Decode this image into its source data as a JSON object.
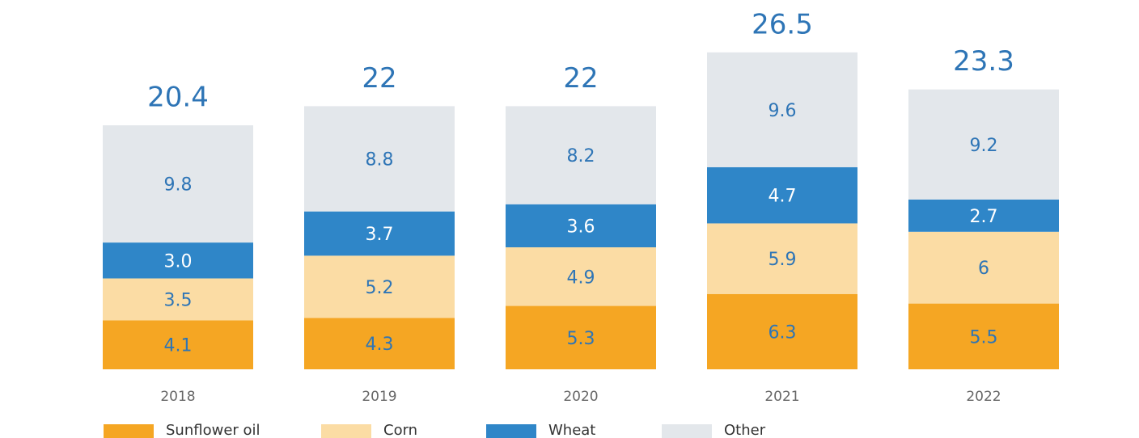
{
  "chart_data": {
    "type": "stacked-bar",
    "categories": [
      "2018",
      "2019",
      "2020",
      "2021",
      "2022"
    ],
    "series": [
      {
        "name": "Sunflower oil",
        "color": "#f5a623",
        "values": [
          4.1,
          4.3,
          5.3,
          6.3,
          5.5
        ]
      },
      {
        "name": "Corn",
        "color": "#fbdca4",
        "values": [
          3.5,
          5.2,
          4.9,
          5.9,
          6
        ]
      },
      {
        "name": "Wheat",
        "color": "#2f86c8",
        "values": [
          3.0,
          3.7,
          3.6,
          4.7,
          2.7
        ],
        "value_labels": [
          "3.0",
          "3.7",
          "3.6",
          "4.7",
          "2.7"
        ]
      },
      {
        "name": "Other",
        "color": "#e3e7eb",
        "values": [
          9.8,
          8.8,
          8.2,
          9.6,
          9.2
        ]
      }
    ],
    "totals": [
      20.4,
      22,
      22,
      26.5,
      23.3
    ]
  }
}
